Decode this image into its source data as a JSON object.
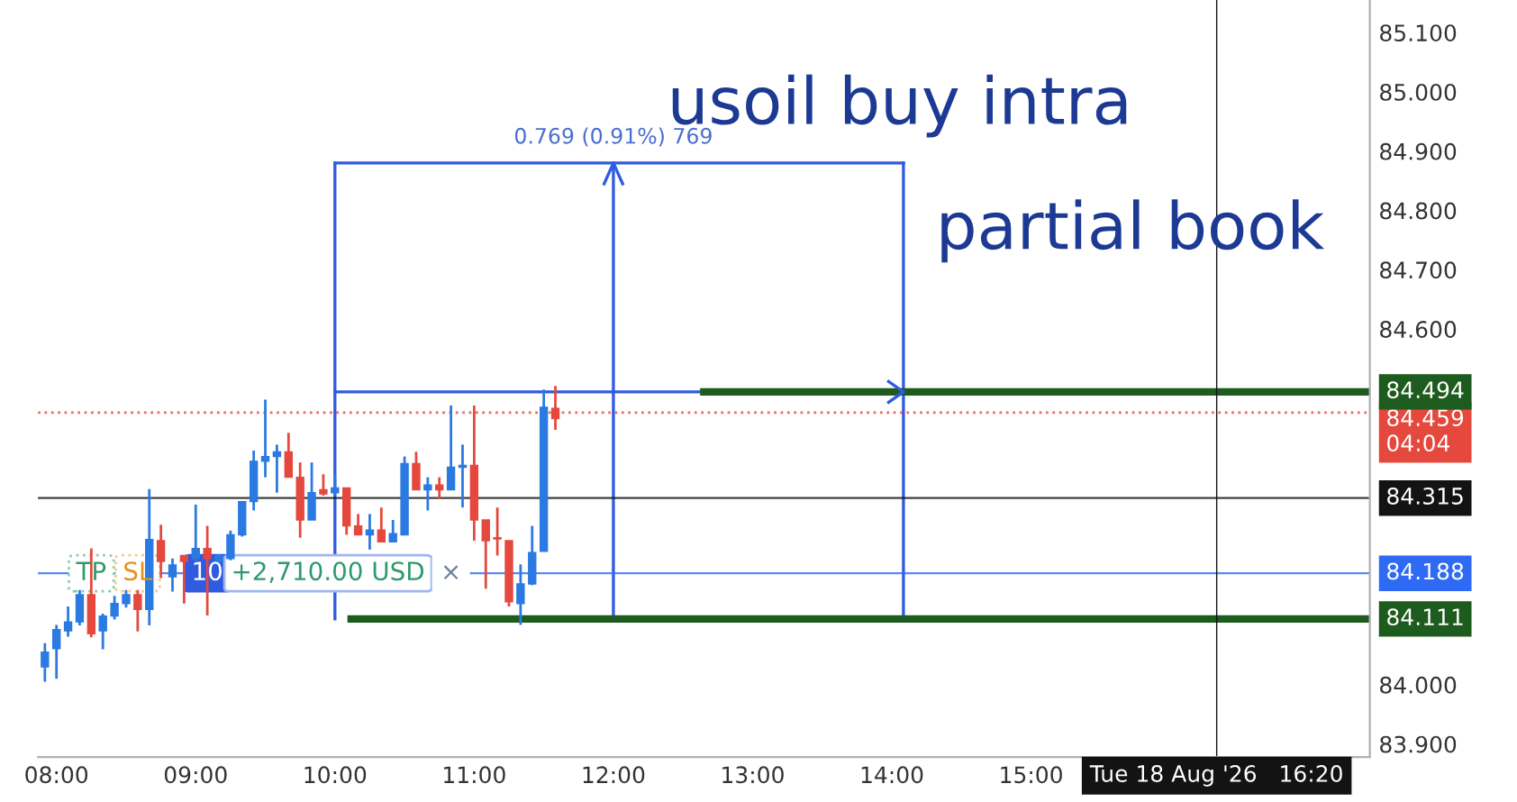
{
  "chart_data": {
    "type": "candlestick",
    "x": [
      "2026-08-18T07:55",
      "2026-08-18T08:00",
      "2026-08-18T08:05",
      "2026-08-18T08:10",
      "2026-08-18T08:15",
      "2026-08-18T08:20",
      "2026-08-18T08:25",
      "2026-08-18T08:30",
      "2026-08-18T08:35",
      "2026-08-18T08:40",
      "2026-08-18T08:45",
      "2026-08-18T08:50",
      "2026-08-18T08:55",
      "2026-08-18T09:00",
      "2026-08-18T09:05",
      "2026-08-18T09:10",
      "2026-08-18T09:15",
      "2026-08-18T09:20",
      "2026-08-18T09:25",
      "2026-08-18T09:30",
      "2026-08-18T09:35",
      "2026-08-18T09:40",
      "2026-08-18T09:45",
      "2026-08-18T09:50",
      "2026-08-18T09:55",
      "2026-08-18T10:00",
      "2026-08-18T10:05",
      "2026-08-18T10:10",
      "2026-08-18T10:15",
      "2026-08-18T10:20",
      "2026-08-18T10:25",
      "2026-08-18T10:30",
      "2026-08-18T10:35",
      "2026-08-18T10:40",
      "2026-08-18T10:45",
      "2026-08-18T10:50",
      "2026-08-18T10:55",
      "2026-08-18T11:00",
      "2026-08-18T11:05",
      "2026-08-18T11:10",
      "2026-08-18T11:15",
      "2026-08-18T11:20",
      "2026-08-18T11:25",
      "2026-08-18T11:30",
      "2026-08-18T11:35"
    ],
    "ohlc": [
      [
        84.03,
        84.07,
        84.005,
        84.055
      ],
      [
        84.061,
        84.101,
        84.01,
        84.093
      ],
      [
        84.091,
        84.132,
        84.081,
        84.106
      ],
      [
        84.106,
        84.16,
        84.1,
        84.152
      ],
      [
        84.152,
        84.23,
        84.08,
        84.086
      ],
      [
        84.091,
        84.12,
        84.06,
        84.116
      ],
      [
        84.116,
        84.15,
        84.11,
        84.137
      ],
      [
        84.137,
        84.16,
        84.13,
        84.152
      ],
      [
        84.152,
        84.16,
        84.09,
        84.127
      ],
      [
        84.127,
        84.33,
        84.1,
        84.245
      ],
      [
        84.243,
        84.27,
        84.18,
        84.208
      ],
      [
        84.182,
        84.213,
        84.157,
        84.202
      ],
      [
        84.218,
        84.218,
        84.137,
        84.208
      ],
      [
        84.213,
        84.304,
        84.208,
        84.23
      ],
      [
        84.23,
        84.268,
        84.117,
        84.213
      ],
      [
        84.208,
        84.22,
        84.2,
        84.218
      ],
      [
        84.213,
        84.26,
        84.21,
        84.253
      ],
      [
        84.253,
        84.31,
        84.25,
        84.309
      ],
      [
        84.309,
        84.395,
        84.294,
        84.377
      ],
      [
        84.377,
        84.481,
        84.35,
        84.385
      ],
      [
        84.385,
        84.405,
        84.324,
        84.393
      ],
      [
        84.393,
        84.425,
        84.35,
        84.35
      ],
      [
        84.35,
        84.375,
        84.248,
        84.278
      ],
      [
        84.278,
        84.375,
        84.278,
        84.324
      ],
      [
        84.329,
        84.355,
        84.319,
        84.322
      ],
      [
        84.324,
        84.355,
        84.319,
        84.332
      ],
      [
        84.332,
        84.332,
        84.253,
        84.268
      ],
      [
        84.268,
        84.288,
        84.253,
        84.253
      ],
      [
        84.253,
        84.288,
        84.228,
        84.261
      ],
      [
        84.261,
        84.299,
        84.241,
        84.241
      ],
      [
        84.241,
        84.278,
        84.241,
        84.255
      ],
      [
        84.253,
        84.385,
        84.253,
        84.373
      ],
      [
        84.373,
        84.393,
        84.329,
        84.329
      ],
      [
        84.329,
        84.35,
        84.294,
        84.337
      ],
      [
        84.337,
        84.35,
        84.314,
        84.329
      ],
      [
        84.329,
        84.471,
        84.329,
        84.367
      ],
      [
        84.367,
        84.405,
        84.299,
        84.37
      ],
      [
        84.37,
        84.471,
        84.243,
        84.278
      ],
      [
        84.278,
        84.278,
        84.162,
        84.243
      ],
      [
        84.248,
        84.299,
        84.218,
        84.246
      ],
      [
        84.243,
        84.243,
        84.132,
        84.14
      ],
      [
        84.137,
        84.203,
        84.101,
        84.17
      ],
      [
        84.17,
        84.268,
        84.168,
        84.223
      ],
      [
        84.225,
        84.498,
        84.225,
        84.468
      ],
      [
        84.466,
        84.504,
        84.43,
        84.449
      ]
    ],
    "colors": [
      "#2a7ae2",
      "#2a7ae2",
      "#2a7ae2",
      "#2a7ae2",
      "#e5483d",
      "#2a7ae2",
      "#2a7ae2",
      "#2a7ae2",
      "#e5483d",
      "#2a7ae2",
      "#e5483d",
      "#2a7ae2",
      "#e5483d",
      "#2a7ae2",
      "#e5483d",
      "#2a7ae2",
      "#2a7ae2",
      "#2a7ae2",
      "#2a7ae2",
      "#2a7ae2",
      "#2a7ae2",
      "#e5483d",
      "#e5483d",
      "#2a7ae2",
      "#e5483d",
      "#2a7ae2",
      "#e5483d",
      "#e5483d",
      "#2a7ae2",
      "#e5483d",
      "#2a7ae2",
      "#2a7ae2",
      "#e5483d",
      "#2a7ae2",
      "#e5483d",
      "#2a7ae2",
      "#2a7ae2",
      "#e5483d",
      "#e5483d",
      "#e5483d",
      "#e5483d",
      "#2a7ae2",
      "#2a7ae2",
      "#2a7ae2",
      "#e5483d"
    ],
    "series": [
      {
        "type": "line",
        "color": "#2f5be0",
        "x": [
          "2026-08-18T10:00",
          "2026-08-18T14:05"
        ],
        "values": [
          84.88,
          84.88
        ]
      },
      {
        "type": "line",
        "color": "#2f5be0",
        "x": [
          "2026-08-18T10:00",
          "2026-08-18T14:05"
        ],
        "values": [
          84.494,
          84.494
        ]
      },
      {
        "type": "line",
        "color": "#2f5be0",
        "x": [
          "2026-08-18T10:00",
          "2026-08-18T10:00"
        ],
        "values": [
          84.111,
          84.88
        ]
      },
      {
        "type": "line",
        "color": "#2f5be0",
        "x": [
          "2026-08-18T14:05",
          "2026-08-18T14:05"
        ],
        "values": [
          84.111,
          84.88
        ]
      },
      {
        "type": "line",
        "color": "#2f5be0",
        "x": [
          "2026-08-18T12:00",
          "2026-08-18T12:00"
        ],
        "values": [
          84.111,
          84.88
        ]
      },
      {
        "type": "line",
        "color": "#1e5b1e",
        "x": [
          "2026-08-18T12:39",
          "2026-08-18T17:26"
        ],
        "values": [
          84.494,
          84.494
        ],
        "value_labels": [
          null,
          "84.494"
        ]
      },
      {
        "type": "line",
        "color": "#1e5b1e",
        "x": [
          "2026-08-18T10:07",
          "2026-08-18T17:26"
        ],
        "values": [
          84.111,
          84.111
        ],
        "value_labels": [
          null,
          "84.111"
        ]
      }
    ],
    "ref_lines": [
      {
        "axis": "y",
        "value": 84.459,
        "label": "84.459\n04:04",
        "color": "#e5483d",
        "line_style": "dotted"
      },
      {
        "axis": "y",
        "value": 84.315,
        "label": "84.315",
        "color": "#131313"
      },
      {
        "axis": "y",
        "value": 84.188,
        "label": "84.188",
        "color": "#2f6af5"
      },
      {
        "axis": "x",
        "value": "2026-08-18T16:20",
        "label": "Tue 18 Aug '26   16:20",
        "color": "#131313"
      }
    ],
    "annotations": [
      "usoil buy intra",
      "partial book",
      {
        "text": "0.769 (0.91%) 769",
        "x": "2026-08-18T12:00",
        "y": 84.88
      },
      {
        "text": "TP",
        "x": "2026-08-18T08:15",
        "y": 84.188
      },
      {
        "text": "SL",
        "x": "2026-08-18T08:35",
        "y": 84.188
      },
      {
        "text": "10",
        "x": "2026-08-18T09:05",
        "y": 84.188
      },
      {
        "text": "+2,710.00 USD",
        "x": "2026-08-18T09:57",
        "y": 84.188
      },
      {
        "text": "×",
        "x": "2026-08-18T10:50",
        "y": 84.188
      }
    ],
    "xlim": [
      "2026-08-18T07:52",
      "2026-08-18T17:26"
    ],
    "xticks": [
      {
        "value": "2026-08-18T08:00",
        "label": "08:00"
      },
      {
        "value": "2026-08-18T09:00",
        "label": "09:00"
      },
      {
        "value": "2026-08-18T10:00",
        "label": "10:00"
      },
      {
        "value": "2026-08-18T11:00",
        "label": "11:00"
      },
      {
        "value": "2026-08-18T12:00",
        "label": "12:00"
      },
      {
        "value": "2026-08-18T13:00",
        "label": "13:00"
      },
      {
        "value": "2026-08-18T14:00",
        "label": "14:00"
      },
      {
        "value": "2026-08-18T15:00",
        "label": "15:00"
      }
    ],
    "ylim": [
      83.878,
      85.155
    ],
    "yticks": [
      {
        "value": 83.9,
        "label": "83.900"
      },
      {
        "value": 84.0,
        "label": "84.000"
      },
      {
        "value": 84.6,
        "label": "84.600"
      },
      {
        "value": 84.7,
        "label": "84.700"
      },
      {
        "value": 84.8,
        "label": "84.800"
      },
      {
        "value": 84.9,
        "label": "84.900"
      },
      {
        "value": 85.0,
        "label": "85.000"
      },
      {
        "value": 85.1,
        "label": "85.100"
      }
    ],
    "grid": false,
    "legend": false
  }
}
